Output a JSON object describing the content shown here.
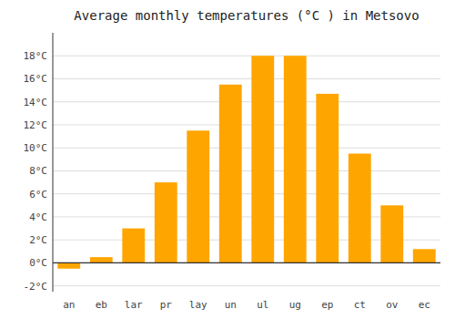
{
  "chart_data": {
    "type": "bar",
    "title": "Average monthly temperatures (°C ) in Metsovo",
    "categories": [
      "an",
      "eb",
      "lar",
      "pr",
      "lay",
      "un",
      "ul",
      "ug",
      "ep",
      "ct",
      "ov",
      "ec"
    ],
    "values": [
      -0.5,
      0.5,
      3.0,
      7.0,
      11.5,
      15.5,
      18.0,
      18.0,
      14.7,
      9.5,
      5.0,
      1.2
    ],
    "color": "#FFA500",
    "ylim": [
      -2.5,
      20
    ],
    "yticks": [
      {
        "value": -2,
        "label": "-2°C"
      },
      {
        "value": 0,
        "label": "0°C"
      },
      {
        "value": 2,
        "label": "2°C"
      },
      {
        "value": 4,
        "label": "4°C"
      },
      {
        "value": 6,
        "label": "6°C"
      },
      {
        "value": 8,
        "label": "8°C"
      },
      {
        "value": 10,
        "label": "10°C"
      },
      {
        "value": 12,
        "label": "12°C"
      },
      {
        "value": 14,
        "label": "14°C"
      },
      {
        "value": 16,
        "label": "16°C"
      },
      {
        "value": 18,
        "label": "18°C"
      }
    ],
    "grid": true
  }
}
